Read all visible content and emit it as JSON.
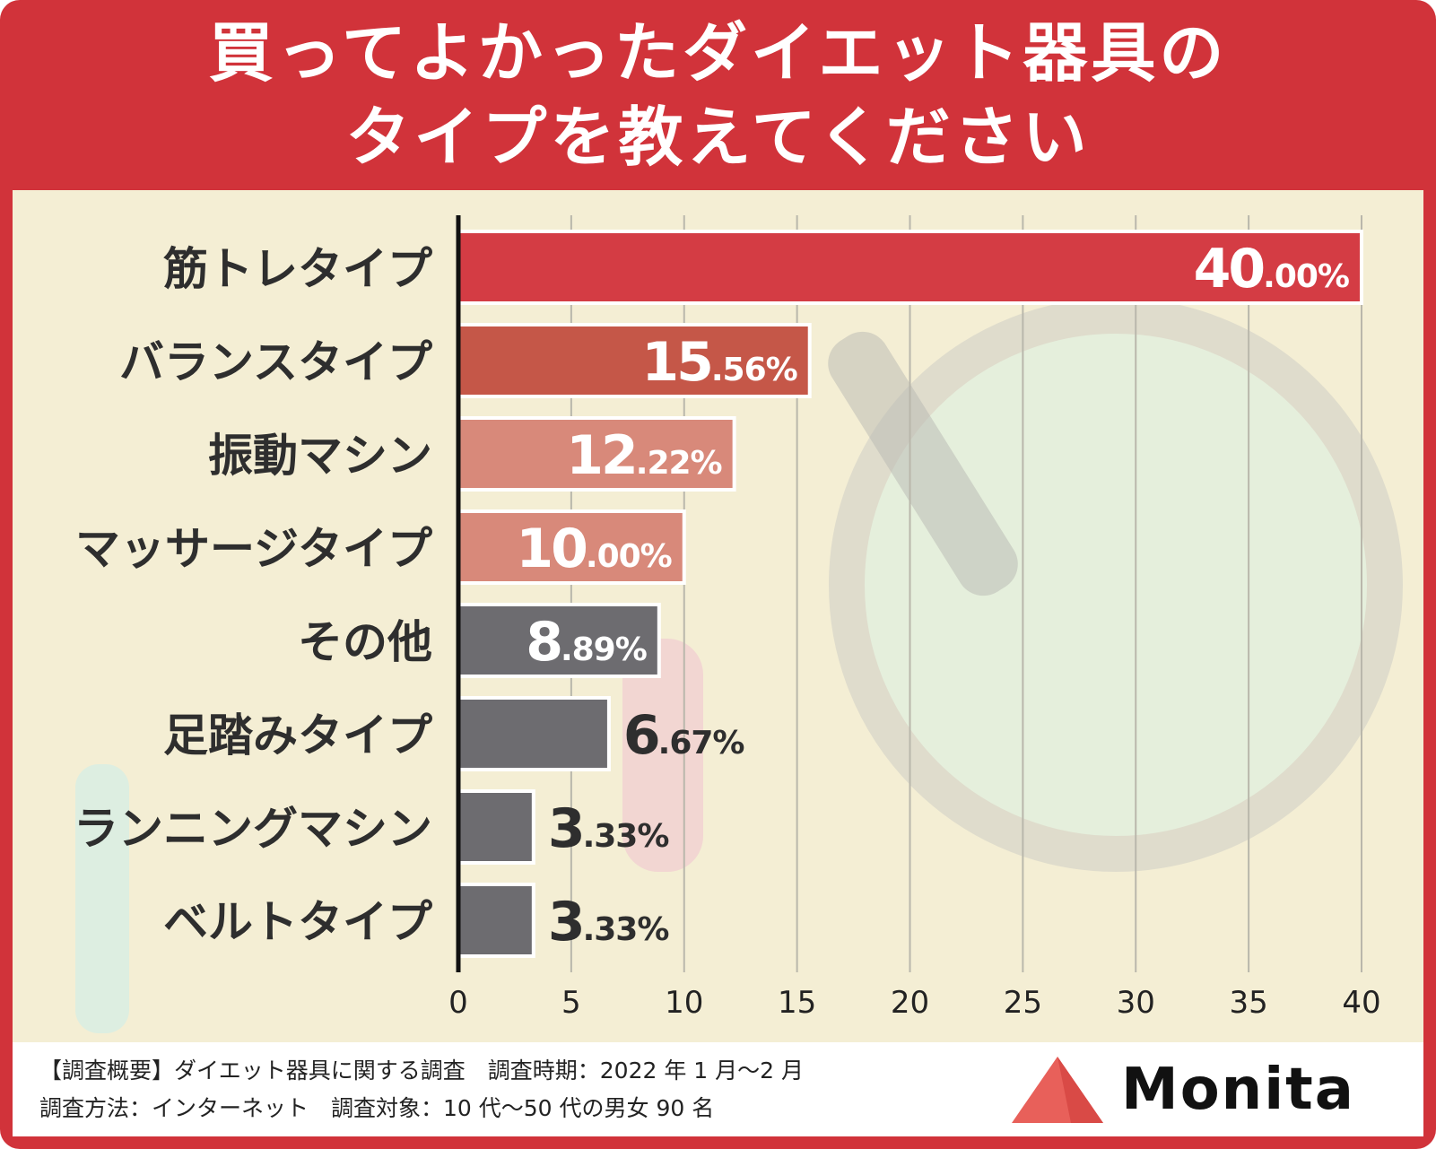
{
  "header": {
    "title_line1": "買ってよかったダイエット器具の",
    "title_line2": "タイプを教えてください"
  },
  "colors": {
    "frame": "#d1333a",
    "bar_top": "#d43c44",
    "bar_second": "#c55748",
    "bar_light": "#d8897a",
    "bar_gray": "#6d6c70",
    "grid": "#b9b7ab",
    "axis": "#111111"
  },
  "chart_data": {
    "type": "bar",
    "orientation": "horizontal",
    "categories": [
      "筋トレタイプ",
      "バランスタイプ",
      "振動マシン",
      "マッサージタイプ",
      "その他",
      "足踏みタイプ",
      "ランニングマシン",
      "ベルトタイプ"
    ],
    "values": [
      40.0,
      15.56,
      12.22,
      10.0,
      8.89,
      6.67,
      3.33,
      3.33
    ],
    "value_labels": [
      {
        "int": "40",
        "dec": ".00%"
      },
      {
        "int": "15",
        "dec": ".56%"
      },
      {
        "int": "12",
        "dec": ".22%"
      },
      {
        "int": "10",
        "dec": ".00%"
      },
      {
        "int": "8",
        "dec": ".89%"
      },
      {
        "int": "6",
        "dec": ".67%"
      },
      {
        "int": "3",
        "dec": ".33%"
      },
      {
        "int": "3",
        "dec": ".33%"
      }
    ],
    "xlim": [
      0,
      40
    ],
    "xticks": [
      "0",
      "5",
      "10",
      "15",
      "20",
      "25",
      "30",
      "35",
      "40"
    ],
    "grid": true
  },
  "footer": {
    "line1": "【調査概要】ダイエット器具に関する調査　調査時期：2022 年 1 月〜2 月",
    "line2": "調査方法：インターネット　調査対象：10 代〜50 代の男女 90 名",
    "brand": "Monita"
  }
}
